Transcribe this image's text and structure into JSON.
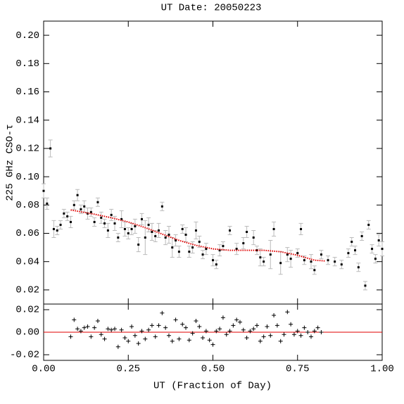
{
  "chart_data": [
    {
      "type": "scatter",
      "title": "UT Date: 20050223",
      "y_label": "225 GHz CSO-τ",
      "xlim": [
        0,
        1
      ],
      "ylim": [
        0.01,
        0.21
      ],
      "xticks": [
        0,
        0.25,
        0.5,
        0.75,
        1
      ],
      "yticks": [
        {
          "value": 0.02,
          "label": "0.02"
        },
        {
          "value": 0.04,
          "label": "0.04"
        },
        {
          "value": 0.06,
          "label": "0.06"
        },
        {
          "value": 0.08,
          "label": "0.08"
        },
        {
          "value": 0.1,
          "label": "0.10"
        },
        {
          "value": 0.12,
          "label": "0.12"
        },
        {
          "value": 0.14,
          "label": "0.14"
        },
        {
          "value": 0.16,
          "label": "0.16"
        },
        {
          "value": 0.18,
          "label": "0.18"
        },
        {
          "value": 0.2,
          "label": "0.20"
        }
      ],
      "points": {
        "color": "#000000",
        "error_color": "#bbbbbb",
        "x": [
          0.0,
          0.01,
          0.02,
          0.03,
          0.04,
          0.05,
          0.06,
          0.07,
          0.08,
          0.09,
          0.1,
          0.11,
          0.12,
          0.13,
          0.14,
          0.15,
          0.16,
          0.17,
          0.18,
          0.19,
          0.2,
          0.21,
          0.22,
          0.23,
          0.24,
          0.25,
          0.26,
          0.27,
          0.28,
          0.29,
          0.3,
          0.31,
          0.32,
          0.33,
          0.34,
          0.35,
          0.36,
          0.37,
          0.38,
          0.39,
          0.4,
          0.41,
          0.42,
          0.43,
          0.44,
          0.45,
          0.46,
          0.47,
          0.48,
          0.5,
          0.51,
          0.52,
          0.53,
          0.55,
          0.57,
          0.59,
          0.6,
          0.62,
          0.63,
          0.64,
          0.65,
          0.67,
          0.68,
          0.7,
          0.72,
          0.73,
          0.75,
          0.76,
          0.77,
          0.79,
          0.8,
          0.82,
          0.84,
          0.86,
          0.88,
          0.9,
          0.91,
          0.92,
          0.93,
          0.94,
          0.95,
          0.96,
          0.97,
          0.98,
          0.99,
          1.0
        ],
        "y": [
          0.09,
          0.081,
          0.12,
          0.063,
          0.062,
          0.066,
          0.074,
          0.072,
          0.068,
          0.08,
          0.087,
          0.077,
          0.079,
          0.074,
          0.075,
          0.068,
          0.082,
          0.071,
          0.067,
          0.062,
          0.073,
          0.067,
          0.057,
          0.07,
          0.063,
          0.06,
          0.063,
          0.065,
          0.052,
          0.07,
          0.057,
          0.066,
          0.061,
          0.058,
          0.062,
          0.079,
          0.057,
          0.059,
          0.05,
          0.055,
          0.047,
          0.063,
          0.059,
          0.047,
          0.05,
          0.062,
          0.054,
          0.045,
          0.049,
          0.041,
          0.038,
          0.048,
          0.051,
          0.062,
          0.049,
          0.053,
          0.061,
          0.057,
          0.048,
          0.043,
          0.04,
          0.045,
          0.063,
          0.039,
          0.045,
          0.042,
          0.046,
          0.063,
          0.041,
          0.04,
          0.034,
          0.045,
          0.041,
          0.04,
          0.038,
          0.046,
          0.054,
          0.048,
          0.036,
          0.058,
          0.023,
          0.066,
          0.049,
          0.042,
          0.055,
          0.049
        ],
        "err": [
          0.005,
          0.004,
          0.006,
          0.006,
          0.003,
          0.003,
          0.003,
          0.003,
          0.004,
          0.003,
          0.004,
          0.003,
          0.004,
          0.004,
          0.003,
          0.003,
          0.003,
          0.004,
          0.003,
          0.005,
          0.004,
          0.005,
          0.003,
          0.006,
          0.005,
          0.004,
          0.004,
          0.005,
          0.005,
          0.004,
          0.012,
          0.005,
          0.006,
          0.004,
          0.005,
          0.003,
          0.005,
          0.006,
          0.007,
          0.004,
          0.004,
          0.003,
          0.005,
          0.004,
          0.004,
          0.006,
          0.004,
          0.003,
          0.004,
          0.004,
          0.003,
          0.004,
          0.003,
          0.003,
          0.004,
          0.004,
          0.004,
          0.005,
          0.003,
          0.006,
          0.003,
          0.01,
          0.005,
          0.008,
          0.005,
          0.006,
          0.003,
          0.004,
          0.003,
          0.005,
          0.003,
          0.003,
          0.003,
          0.003,
          0.003,
          0.003,
          0.003,
          0.003,
          0.003,
          0.003,
          0.003,
          0.003,
          0.003,
          0.003,
          0.004,
          0.005
        ]
      },
      "fit": {
        "color": "#e00000",
        "x": [
          0.08,
          0.15,
          0.2,
          0.25,
          0.3,
          0.35,
          0.4,
          0.45,
          0.5,
          0.55,
          0.6,
          0.65,
          0.7,
          0.75,
          0.8,
          0.83
        ],
        "y": [
          0.0765,
          0.0735,
          0.071,
          0.068,
          0.064,
          0.0595,
          0.055,
          0.0515,
          0.049,
          0.048,
          0.048,
          0.048,
          0.047,
          0.0445,
          0.041,
          0.0405
        ]
      }
    },
    {
      "type": "residual",
      "x_label": "UT (Fraction of Day)",
      "xlim": [
        0,
        1
      ],
      "ylim": [
        -0.025,
        0.025
      ],
      "xticks": [
        {
          "value": 0,
          "label": "0.00"
        },
        {
          "value": 0.25,
          "label": "0.25"
        },
        {
          "value": 0.5,
          "label": "0.50"
        },
        {
          "value": 0.75,
          "label": "0.75"
        },
        {
          "value": 1,
          "label": "1.00"
        }
      ],
      "yticks": [
        {
          "value": -0.02,
          "label": "-0.02"
        },
        {
          "value": 0,
          "label": "0.00"
        },
        {
          "value": 0.02,
          "label": "0.02"
        }
      ],
      "zero_line_color": "#e00000",
      "residuals": {
        "color": "#000000",
        "x": [
          0.08,
          0.09,
          0.1,
          0.11,
          0.12,
          0.13,
          0.14,
          0.15,
          0.16,
          0.17,
          0.18,
          0.19,
          0.2,
          0.21,
          0.22,
          0.23,
          0.24,
          0.25,
          0.26,
          0.27,
          0.28,
          0.29,
          0.3,
          0.31,
          0.32,
          0.33,
          0.34,
          0.35,
          0.36,
          0.37,
          0.38,
          0.39,
          0.4,
          0.41,
          0.42,
          0.43,
          0.44,
          0.45,
          0.46,
          0.47,
          0.48,
          0.49,
          0.5,
          0.51,
          0.52,
          0.53,
          0.54,
          0.55,
          0.56,
          0.57,
          0.58,
          0.59,
          0.6,
          0.61,
          0.62,
          0.63,
          0.64,
          0.65,
          0.66,
          0.67,
          0.68,
          0.69,
          0.7,
          0.71,
          0.72,
          0.73,
          0.74,
          0.75,
          0.76,
          0.77,
          0.78,
          0.79,
          0.8,
          0.81,
          0.82
        ],
        "y": [
          -0.004,
          0.011,
          0.003,
          0.001,
          0.004,
          0.005,
          -0.004,
          0.004,
          0.01,
          -0.002,
          -0.006,
          0.003,
          0.002,
          0.003,
          -0.013,
          0.002,
          -0.005,
          -0.008,
          0.005,
          -0.003,
          -0.01,
          0.001,
          -0.006,
          0.002,
          0.006,
          -0.004,
          0.006,
          0.017,
          0.004,
          -0.003,
          -0.008,
          0.011,
          -0.006,
          0.007,
          0.004,
          -0.007,
          -0.001,
          0.01,
          0.005,
          -0.005,
          0.001,
          -0.007,
          -0.011,
          0.001,
          0.003,
          0.013,
          -0.002,
          0.001,
          0.006,
          0.011,
          0.009,
          0.002,
          -0.005,
          0.001,
          0.003,
          0.006,
          -0.008,
          -0.004,
          0.005,
          -0.003,
          0.015,
          0.006,
          -0.008,
          -0.002,
          0.018,
          0.007,
          -0.002,
          0.001,
          -0.003,
          0.004,
          0.0,
          -0.004,
          0.001,
          0.004,
          0.0
        ]
      }
    }
  ]
}
